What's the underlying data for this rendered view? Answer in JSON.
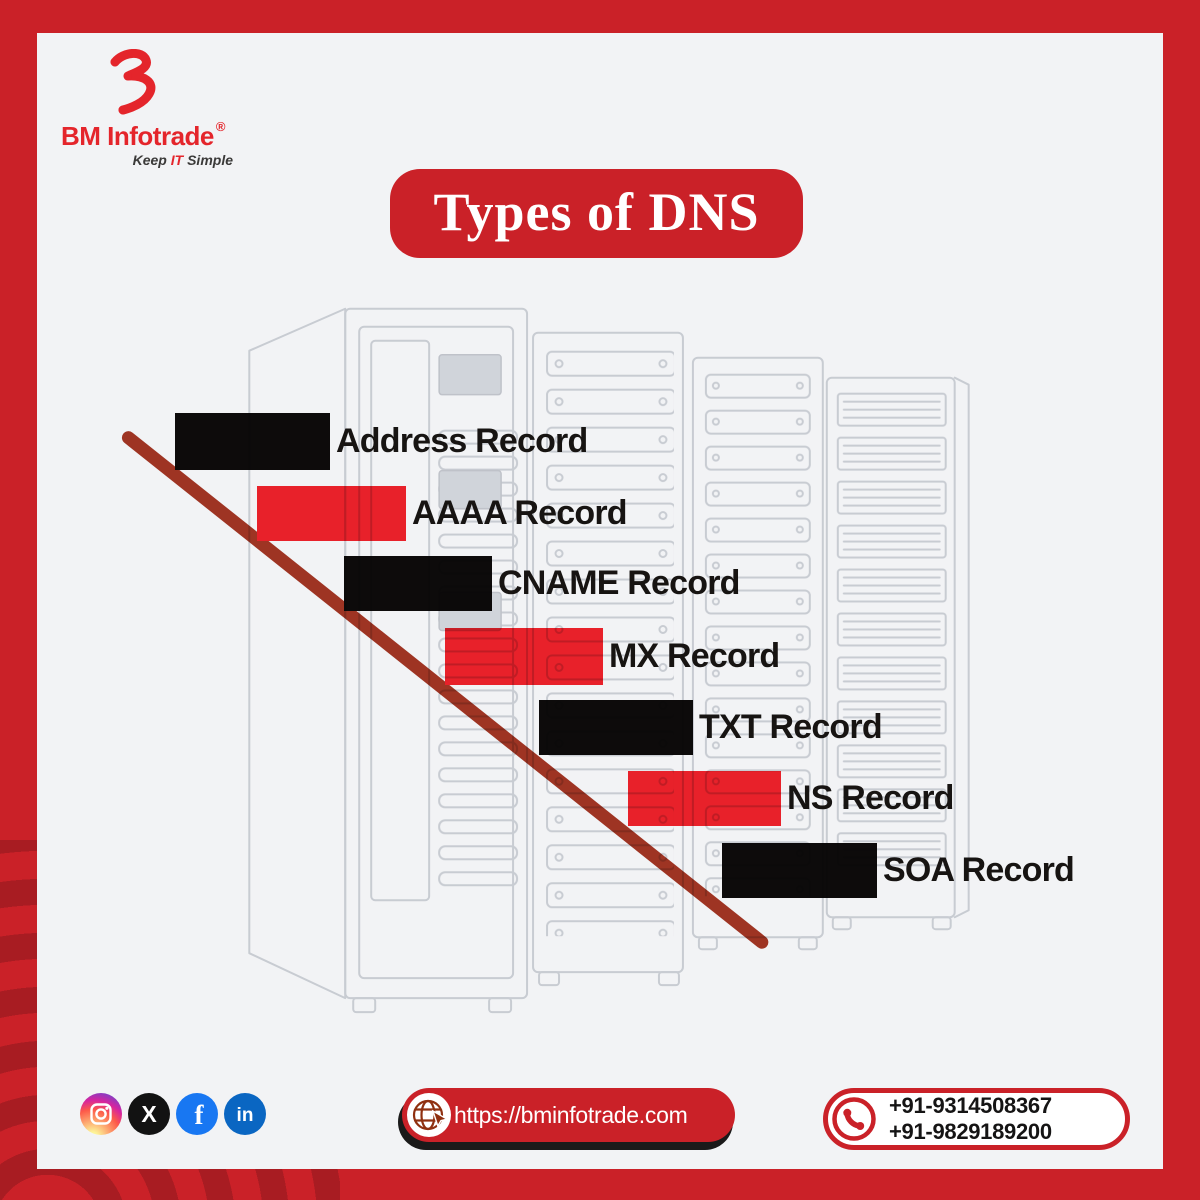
{
  "brand": {
    "name": "BM Infotrade",
    "registered_mark": "®",
    "tagline": {
      "keep": "Keep",
      "it": "IT",
      "simple": "Simple"
    }
  },
  "title": "Types of DNS",
  "records": [
    {
      "label": "Address Record",
      "color": "black"
    },
    {
      "label": "AAAA Record",
      "color": "red"
    },
    {
      "label": "CNAME Record",
      "color": "black"
    },
    {
      "label": "MX Record",
      "color": "red"
    },
    {
      "label": "TXT Record",
      "color": "black"
    },
    {
      "label": "NS Record",
      "color": "red"
    },
    {
      "label": "SOA Record",
      "color": "black"
    }
  ],
  "footer": {
    "website": "https://bminfotrade.com",
    "phone_numbers": [
      "+91-9314508367",
      "+91-9829189200"
    ],
    "social_icons": [
      "instagram-icon",
      "x-icon",
      "facebook-icon",
      "linkedin-icon"
    ]
  },
  "colors": {
    "frame_red": "#ca2128",
    "swirl_red": "#a81c22",
    "bar_red": "#e8212a",
    "bar_black": "#0d0b0b",
    "diagonal_line": "#9e3423",
    "logo_red": "#e4252b",
    "facebook_blue": "#1877f2",
    "linkedin_blue": "#0a66c2",
    "x_black": "#121212",
    "globe_rust": "#8f3010"
  }
}
